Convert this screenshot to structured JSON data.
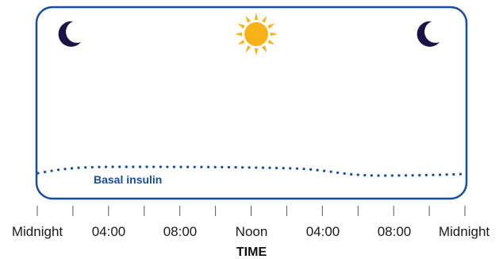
{
  "diagram": {
    "icons": {
      "left": "moon-icon",
      "center": "sun-icon",
      "right": "moon-icon"
    },
    "curve_label": "Basal insulin",
    "axis_title": "TIME",
    "tick_labels": [
      "Midnight",
      "04:00",
      "08:00",
      "Noon",
      "04:00",
      "08:00",
      "Midnight"
    ],
    "colors": {
      "frame": "#1b4d94",
      "moon": "#1a1446",
      "sun": "#f7b21a",
      "curve": "#1b4d94"
    }
  }
}
